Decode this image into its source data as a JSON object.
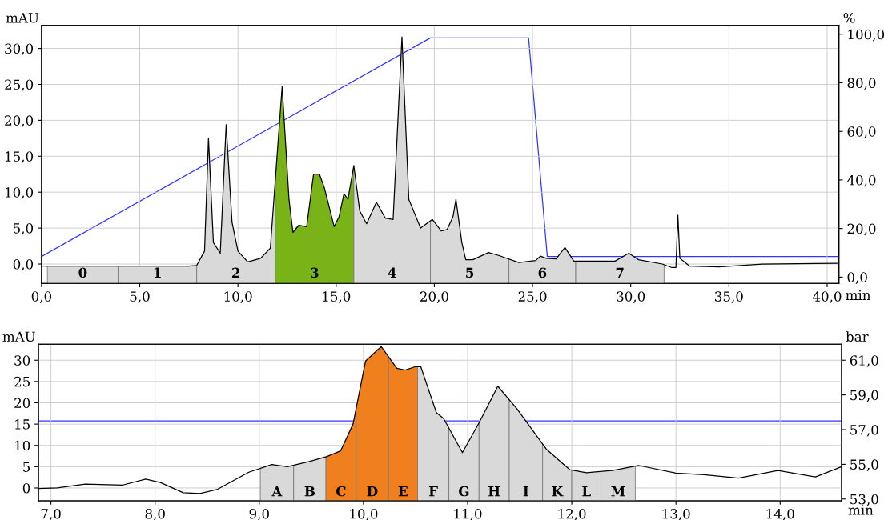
{
  "chart_data": [
    {
      "type": "line",
      "xlabel": "min",
      "ylabel": "mAU",
      "y2label": "%",
      "xlim": [
        0,
        40.6
      ],
      "ylim": [
        -2.7,
        33.2
      ],
      "y2lim": [
        -2.6,
        103.6
      ],
      "grid": true,
      "xticks": [
        {
          "value": 0,
          "label": "0,0"
        },
        {
          "value": 5,
          "label": "5,0"
        },
        {
          "value": 10,
          "label": "10,0"
        },
        {
          "value": 15,
          "label": "15,0"
        },
        {
          "value": 20,
          "label": "20,0"
        },
        {
          "value": 25,
          "label": "25,0"
        },
        {
          "value": 30,
          "label": "30,0"
        },
        {
          "value": 35,
          "label": "35,0"
        },
        {
          "value": 40,
          "label": "40,0"
        }
      ],
      "yticks": [
        {
          "value": 0,
          "label": "0,0"
        },
        {
          "value": 5,
          "label": "5,0"
        },
        {
          "value": 10,
          "label": "10,0"
        },
        {
          "value": 15,
          "label": "15,0"
        },
        {
          "value": 20,
          "label": "20,0"
        },
        {
          "value": 25,
          "label": "25,0"
        },
        {
          "value": 30,
          "label": "30,0"
        }
      ],
      "y2ticks": [
        {
          "value": 0,
          "label": "0,0"
        },
        {
          "value": 20,
          "label": "20,0"
        },
        {
          "value": 40,
          "label": "40,0"
        },
        {
          "value": 60,
          "label": "60,0"
        },
        {
          "value": 80,
          "label": "80,0"
        },
        {
          "value": 100,
          "label": "100,0"
        }
      ],
      "series": [
        {
          "color": "#000000",
          "x": [
            0,
            7.5,
            7.9,
            8.3,
            8.5,
            8.75,
            9.1,
            9.4,
            9.7,
            10.0,
            10.5,
            11.15,
            11.65,
            12.25,
            12.6,
            12.8,
            13.1,
            13.5,
            13.85,
            14.15,
            14.4,
            14.9,
            15.15,
            15.4,
            15.6,
            15.9,
            16.2,
            16.55,
            17.05,
            17.5,
            17.9,
            18.35,
            18.7,
            19.3,
            19.9,
            20.35,
            20.65,
            20.95,
            21.1,
            21.4,
            21.6,
            21.96,
            22.76,
            23.27,
            24.3,
            25.17,
            25.4,
            25.7,
            26.2,
            26.65,
            27.1,
            28.08,
            29.2,
            29.9,
            30.4,
            31.6,
            32.1,
            32.3,
            32.4,
            32.5,
            33.0,
            34.5,
            36.7,
            40.5
          ],
          "values": [
            -0.3,
            -0.3,
            -0.2,
            1.8,
            17.5,
            3,
            1.5,
            19.4,
            5.8,
            1.8,
            0.3,
            0.8,
            2.2,
            24.7,
            9,
            4.4,
            5.4,
            5.2,
            12.5,
            12.5,
            10.6,
            5.2,
            6.6,
            9.8,
            9,
            13.7,
            7.4,
            5.6,
            8.6,
            6.4,
            6.2,
            31.6,
            9,
            5,
            6.2,
            4.6,
            4.8,
            6.6,
            9,
            3,
            0.6,
            0.6,
            1.6,
            1.2,
            0.2,
            0.5,
            1.1,
            0.8,
            0.7,
            2.3,
            0.4,
            0.4,
            0.4,
            1.5,
            0.6,
            0,
            -0.5,
            -0.5,
            6.8,
            0.8,
            -0.3,
            -0.4,
            0,
            0.1
          ]
        },
        {
          "color": "#3333ff",
          "axis": "y2",
          "x": [
            0,
            19.8,
            24.8,
            25.75,
            40.6
          ],
          "values": [
            8.5,
            98.5,
            98.5,
            8.5,
            8.5
          ]
        }
      ],
      "bands": [
        {
          "axis": "x",
          "from": 0.3,
          "to": 3.9,
          "label": "0",
          "color": "#d9d9d9"
        },
        {
          "axis": "x",
          "from": 3.9,
          "to": 7.9,
          "label": "1",
          "color": "#d9d9d9"
        },
        {
          "axis": "x",
          "from": 7.9,
          "to": 11.9,
          "label": "2",
          "color": "#d9d9d9"
        },
        {
          "axis": "x",
          "from": 11.9,
          "to": 15.9,
          "label": "3",
          "color": "#7ab317"
        },
        {
          "axis": "x",
          "from": 15.9,
          "to": 19.8,
          "label": "4",
          "color": "#d9d9d9"
        },
        {
          "axis": "x",
          "from": 19.8,
          "to": 23.8,
          "label": "5",
          "color": "#d9d9d9"
        },
        {
          "axis": "x",
          "from": 23.8,
          "to": 27.2,
          "label": "6",
          "color": "#d9d9d9"
        },
        {
          "axis": "x",
          "from": 27.2,
          "to": 31.7,
          "label": "7",
          "color": "#d9d9d9"
        }
      ]
    },
    {
      "type": "line",
      "xlabel": "min",
      "ylabel": "mAU",
      "y2label": "bar",
      "xlim": [
        6.88,
        14.59
      ],
      "ylim": [
        -3,
        33.75
      ],
      "y2lim": [
        52.9,
        61.92
      ],
      "grid": true,
      "xticks": [
        {
          "value": 7,
          "label": "7,0"
        },
        {
          "value": 8,
          "label": "8,0"
        },
        {
          "value": 9,
          "label": "9,0"
        },
        {
          "value": 10,
          "label": "10,0"
        },
        {
          "value": 11,
          "label": "11,0"
        },
        {
          "value": 12,
          "label": "12,0"
        },
        {
          "value": 13,
          "label": "13,0"
        },
        {
          "value": 14,
          "label": "14,0"
        }
      ],
      "yticks": [
        0,
        5,
        10,
        15,
        20,
        25,
        30
      ],
      "y2ticks": [
        {
          "value": 53,
          "label": "53,0"
        },
        {
          "value": 55,
          "label": "55,0"
        },
        {
          "value": 57,
          "label": "57,0"
        },
        {
          "value": 59,
          "label": "59,0"
        },
        {
          "value": 61,
          "label": "61,0"
        }
      ],
      "series": [
        {
          "color": "#000000",
          "x": [
            6.88,
            7.06,
            7.33,
            7.69,
            7.91,
            8.05,
            8.27,
            8.43,
            8.6,
            8.9,
            9.12,
            9.27,
            9.48,
            9.65,
            9.78,
            9.9,
            10.02,
            10.17,
            10.32,
            10.4,
            10.5,
            10.55,
            10.7,
            10.77,
            10.95,
            11.11,
            11.29,
            11.48,
            11.76,
            11.98,
            12.14,
            12.39,
            12.64,
            13.0,
            13.27,
            13.6,
            13.98,
            14.34,
            14.59
          ],
          "values": [
            -0.1,
            0,
            0.9,
            0.7,
            2.1,
            1.3,
            -1.1,
            -1.3,
            -0.3,
            3.7,
            5.5,
            5,
            6.2,
            7.4,
            8.7,
            15,
            29.8,
            33.2,
            28.1,
            27.7,
            28.5,
            28.5,
            17.7,
            16.3,
            8.3,
            15.3,
            23.9,
            18.4,
            9,
            4.3,
            3.6,
            4.1,
            5.3,
            3.5,
            3.1,
            2.3,
            4.1,
            2.6,
            5
          ]
        },
        {
          "color": "#3333ff",
          "axis": "y2",
          "x": [
            6.88,
            14.59
          ],
          "values": [
            57.5,
            57.5
          ]
        }
      ],
      "bands": [
        {
          "axis": "x",
          "from": 9.01,
          "to": 9.33,
          "label": "A",
          "color": "#d9d9d9"
        },
        {
          "axis": "x",
          "from": 9.33,
          "to": 9.64,
          "label": "B",
          "color": "#d9d9d9"
        },
        {
          "axis": "x",
          "from": 9.64,
          "to": 9.93,
          "label": "C",
          "color": "#f07f1e"
        },
        {
          "axis": "x",
          "from": 9.93,
          "to": 10.24,
          "label": "D",
          "color": "#f07f1e"
        },
        {
          "axis": "x",
          "from": 10.24,
          "to": 10.52,
          "label": "E",
          "color": "#f07f1e"
        },
        {
          "axis": "x",
          "from": 10.52,
          "to": 10.82,
          "label": "F",
          "color": "#d9d9d9"
        },
        {
          "axis": "x",
          "from": 10.82,
          "to": 11.11,
          "label": "G",
          "color": "#d9d9d9"
        },
        {
          "axis": "x",
          "from": 11.11,
          "to": 11.4,
          "label": "H",
          "color": "#d9d9d9"
        },
        {
          "axis": "x",
          "from": 11.4,
          "to": 11.72,
          "label": "I",
          "color": "#d9d9d9"
        },
        {
          "axis": "x",
          "from": 11.72,
          "to": 12.0,
          "label": "K",
          "color": "#d9d9d9"
        },
        {
          "axis": "x",
          "from": 12.0,
          "to": 12.28,
          "label": "L",
          "color": "#d9d9d9"
        },
        {
          "axis": "x",
          "from": 12.28,
          "to": 12.61,
          "label": "M",
          "color": "#d9d9d9"
        }
      ]
    }
  ]
}
